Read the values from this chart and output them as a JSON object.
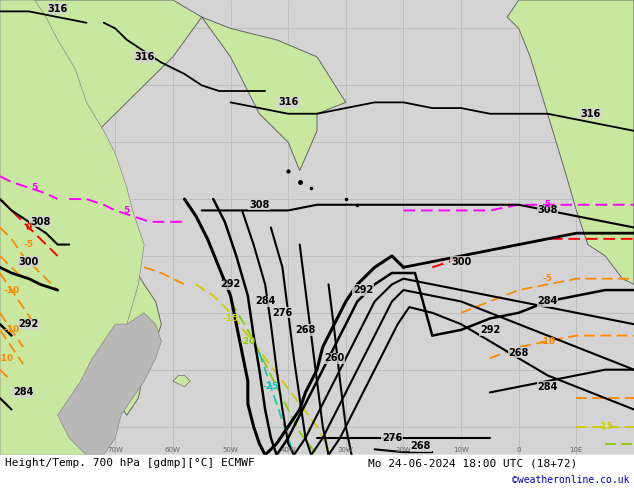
{
  "title_bottom": "Height/Temp. 700 hPa [gdmp][°C] ECMWF",
  "datetime_label": "Mo 24-06-2024 18:00 UTC (18+72)",
  "copyright": "©weatheronline.co.uk",
  "figsize": [
    6.34,
    4.9
  ],
  "dpi": 100,
  "bg_land": "#c8e8a0",
  "bg_sea": "#d4d4d4",
  "bg_land_gray": "#b8b8b8",
  "grid_color": "#b0b0b0",
  "coast_color": "#888888",
  "height_contour_color": "#000000",
  "temp_colors": {
    "pos5": "#ff00ff",
    "zero": "#ff0000",
    "neg5": "#ff8800",
    "neg10": "#ff8800",
    "neg15": "#cccc00",
    "neg20": "#88cc00",
    "neg25": "#00ccaa"
  },
  "bottom_text_color": "#000000",
  "copyright_color": "#0000bb",
  "font_size_bottom": 8,
  "font_size_copyright": 7
}
